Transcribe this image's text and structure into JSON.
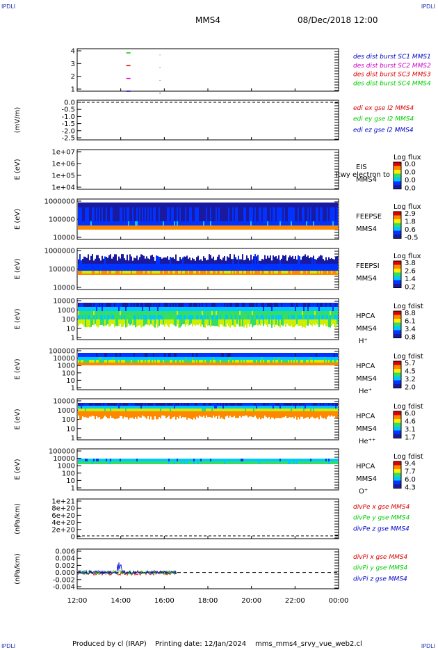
{
  "corner_labels": {
    "top_left": "IPDLI",
    "top_right": "IPDLI",
    "bottom_left": "IPDLI",
    "bottom_right": "IPDLI"
  },
  "header": {
    "spacecraft": "MMS4",
    "date": "08/Dec/2018 12:00"
  },
  "footer": {
    "produced_by": "Produced by cl (IRAP)",
    "printing_date": "Printing date: 12/Jan/2024",
    "script": "mms_mms4_srvy_vue_web2.cl"
  },
  "colors": {
    "axis": "#000000",
    "red": "#dd0000",
    "green": "#00cc00",
    "blue": "#0000cc",
    "magenta": "#cc00cc"
  },
  "time_axis": {
    "ticks": [
      "12:00",
      "14:00",
      "16:00",
      "18:00",
      "20:00",
      "22:00",
      "00:00"
    ]
  },
  "chart_data": [
    {
      "type": "scatter",
      "name": "burst flags",
      "yticks": [
        "4",
        "3",
        "2",
        "1"
      ],
      "legend": [
        {
          "label": "des dist burst SC1 MMS1",
          "color": "#0000cc"
        },
        {
          "label": "des dist burst SC2 MMS2",
          "color": "#cc00cc"
        },
        {
          "label": "des dist burst SC3 MMS3",
          "color": "#dd0000"
        },
        {
          "label": "des dist burst SC4 MMS4",
          "color": "#00cc00"
        }
      ],
      "points": [
        {
          "x": "14:21",
          "y": 4,
          "color": "#00cc00"
        },
        {
          "x": "14:21",
          "y": 3,
          "color": "#dd0000"
        },
        {
          "x": "14:21",
          "y": 2,
          "color": "#cc00cc"
        },
        {
          "x": "14:21",
          "y": 1,
          "color": "#0000cc"
        }
      ]
    },
    {
      "type": "line",
      "name": "EDI E-field",
      "ylabel": "(mV/m)",
      "yticks": [
        "0.0",
        "-0.5",
        "-1.0",
        "-1.5",
        "-2.0",
        "-2.5"
      ],
      "legend": [
        {
          "label": "edi ex gse l2 MMS4",
          "color": "#dd0000"
        },
        {
          "label": "edi ey gse l2 MMS4",
          "color": "#00cc00"
        },
        {
          "label": "edi ez gse l2 MMS4",
          "color": "#0000cc"
        }
      ]
    },
    {
      "type": "heatmap",
      "name": "EIS",
      "ylabel": "E (eV)",
      "yticks": [
        "1e+07",
        "1e+06",
        "1e+05",
        "1e+04"
      ],
      "instrument": [
        "EIS",
        "MMS4"
      ],
      "overlay_text": "ltwy electron to",
      "colorbar": {
        "title": "Log flux",
        "ticks": [
          "0.0",
          "0.0",
          "0.0",
          "0.0"
        ]
      }
    },
    {
      "type": "heatmap",
      "name": "FEEPS electrons",
      "ylabel": "E (eV)",
      "yticks": [
        "1000000",
        "100000",
        "10000"
      ],
      "instrument": [
        "FEEPSE",
        "MMS4"
      ],
      "colorbar": {
        "title": "Log flux",
        "ticks": [
          "2.9",
          "1.8",
          "0.6",
          "-0.5"
        ]
      }
    },
    {
      "type": "heatmap",
      "name": "FEEPS ions",
      "ylabel": "E (eV)",
      "yticks": [
        "1000000",
        "100000",
        "10000"
      ],
      "instrument": [
        "FEEPSI",
        "MMS4"
      ],
      "colorbar": {
        "title": "Log flux",
        "ticks": [
          "3.8",
          "2.6",
          "1.4",
          "0.2"
        ]
      }
    },
    {
      "type": "heatmap",
      "name": "HPCA H+",
      "ylabel": "E (eV)",
      "yticks": [
        "10000",
        "1000",
        "100",
        "10",
        "1"
      ],
      "instrument": [
        "HPCA",
        "MMS4",
        "H⁺"
      ],
      "colorbar": {
        "title": "Log fdist",
        "ticks": [
          "8.8",
          "6.1",
          "3.4",
          "0.8"
        ]
      }
    },
    {
      "type": "heatmap",
      "name": "HPCA He+",
      "ylabel": "E (eV)",
      "yticks": [
        "100000",
        "10000",
        "1000",
        "100",
        "10",
        "1"
      ],
      "instrument": [
        "HPCA",
        "MMS4",
        "He⁺"
      ],
      "colorbar": {
        "title": "Log fdist",
        "ticks": [
          "5.7",
          "4.5",
          "3.2",
          "2.0"
        ]
      }
    },
    {
      "type": "heatmap",
      "name": "HPCA He++",
      "ylabel": "E (eV)",
      "yticks": [
        "10000",
        "1000",
        "100",
        "10",
        "1"
      ],
      "instrument": [
        "HPCA",
        "MMS4",
        "He⁺⁺"
      ],
      "colorbar": {
        "title": "Log fdist",
        "ticks": [
          "6.0",
          "4.6",
          "3.1",
          "1.7"
        ]
      }
    },
    {
      "type": "heatmap",
      "name": "HPCA O+",
      "ylabel": "E (eV)",
      "yticks": [
        "100000",
        "10000",
        "1000",
        "100",
        "10",
        "1"
      ],
      "instrument": [
        "HPCA",
        "MMS4",
        "O⁺"
      ],
      "colorbar": {
        "title": "Log fdist",
        "ticks": [
          "9.4",
          "7.7",
          "6.0",
          "4.3"
        ]
      }
    },
    {
      "type": "line",
      "name": "divPe",
      "ylabel": "(nPa/km)",
      "yticks": [
        "1e+21",
        "8e+20",
        "6e+20",
        "4e+20",
        "2e+20",
        "0"
      ],
      "legend": [
        {
          "label": "divPe x gse MMS4",
          "color": "#dd0000"
        },
        {
          "label": "divPe y gse MMS4",
          "color": "#00cc00"
        },
        {
          "label": "divPe z gse MMS4",
          "color": "#0000cc"
        }
      ]
    },
    {
      "type": "line",
      "name": "divPi",
      "ylabel": "(nPa/km)",
      "yticks": [
        "0.006",
        "0.004",
        "0.002",
        "0.000",
        "-0.002",
        "-0.004"
      ],
      "ylim": [
        -0.005,
        0.007
      ],
      "legend": [
        {
          "label": "divPi x gse MMS4",
          "color": "#dd0000"
        },
        {
          "label": "divPi y gse MMS4",
          "color": "#00cc00"
        },
        {
          "label": "divPi z gse MMS4",
          "color": "#0000cc"
        }
      ],
      "x_end": "16:35"
    }
  ]
}
